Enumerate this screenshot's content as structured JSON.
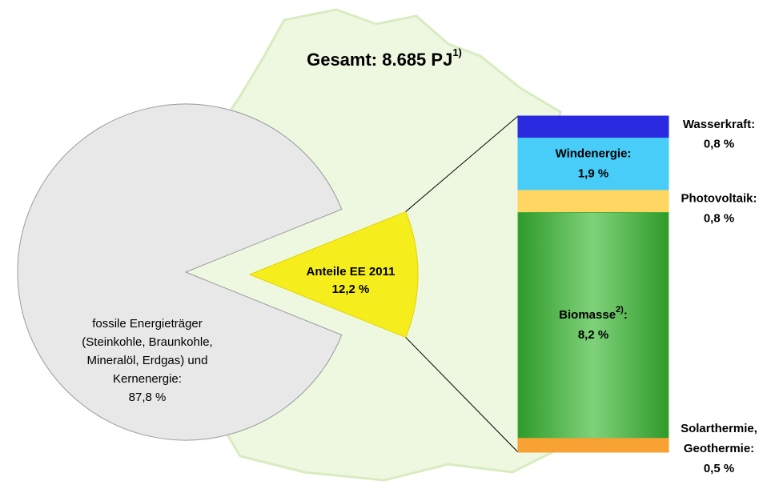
{
  "chart_data": {
    "type": "pie-of-bar",
    "title": "Gesamt: 8.685 PJ",
    "title_note": "1)",
    "pie": {
      "slices": [
        {
          "label_lines": [
            "fossile Energieträger",
            "(Steinkohle, Braunkohle,",
            "Mineralöl, Erdgas) und",
            "Kernenergie:"
          ],
          "value": 87.8,
          "value_label": "87,8 %",
          "color": "#e8e8e8"
        },
        {
          "label_lines": [
            "Anteile EE 2011"
          ],
          "value": 12.2,
          "value_label": "12,2 %",
          "color": "#f6ee1c"
        }
      ]
    },
    "bar": {
      "segments": [
        {
          "name_lines": [
            "Wasserkraft:"
          ],
          "value": 0.8,
          "value_label": "0,8 %",
          "color": "#2a2ae0",
          "label_side": "outside"
        },
        {
          "name_lines": [
            "Windenergie:"
          ],
          "value": 1.9,
          "value_label": "1,9 %",
          "color": "#48ccf8",
          "label_side": "inside"
        },
        {
          "name_lines": [
            "Photovoltaik:"
          ],
          "value": 0.8,
          "value_label": "0,8 %",
          "color": "#ffd662",
          "label_side": "outside"
        },
        {
          "name_lines": [
            "Biomasse"
          ],
          "note": "2)",
          "name_end": ":",
          "value": 8.2,
          "value_label": "8,2 %",
          "color": "#48b23c",
          "label_side": "inside"
        },
        {
          "name_lines": [
            "Solarthermie,",
            "Geothermie:"
          ],
          "value": 0.5,
          "value_label": "0,5 %",
          "color": "#f8a234",
          "label_side": "outside"
        }
      ]
    }
  }
}
